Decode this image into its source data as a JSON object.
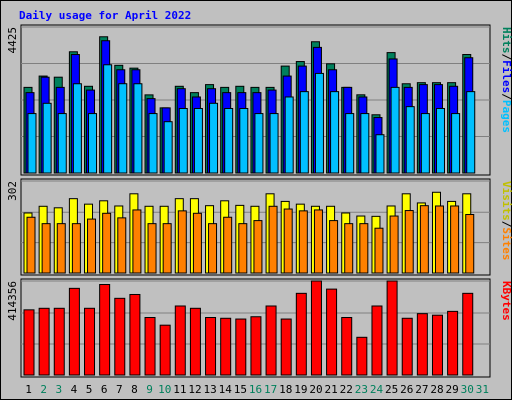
{
  "chart_data": {
    "type": "bar",
    "title": "Daily usage for April 2022",
    "categories": [
      "1",
      "2",
      "3",
      "4",
      "5",
      "6",
      "7",
      "8",
      "9",
      "10",
      "11",
      "12",
      "13",
      "14",
      "15",
      "16",
      "17",
      "18",
      "19",
      "20",
      "21",
      "22",
      "23",
      "24",
      "25",
      "26",
      "27",
      "28",
      "29",
      "30",
      "31"
    ],
    "weekend_days": [
      2,
      3,
      9,
      10,
      16,
      17,
      23,
      24,
      30,
      31
    ],
    "panels": [
      {
        "id": "hits",
        "max_label": "4425",
        "ymax": 4425,
        "legend": [
          {
            "text": "Hits",
            "color": "#00805c"
          },
          {
            "text": "/",
            "color": "#000000"
          },
          {
            "text": "Files",
            "color": "#0000ff"
          },
          {
            "text": "/",
            "color": "#000000"
          },
          {
            "text": "Pages",
            "color": "#00c0ff"
          }
        ],
        "series": [
          {
            "name": "Hits",
            "color": "#00805c",
            "values": [
              2595,
              2938,
              2904,
              3674,
              2628,
              4129,
              3264,
              3178,
              2368,
              1974,
              2628,
              2436,
              2679,
              2595,
              2628,
              2595,
              2595,
              3240,
              3378,
              3978,
              3309,
              2595,
              2370,
              1765,
              3649,
              2705,
              2738,
              2738,
              2738,
              3591,
              0
            ]
          },
          {
            "name": "Files",
            "color": "#0000ff",
            "values": [
              2436,
              2904,
              2595,
              3591,
              2513,
              4009,
              3129,
              3129,
              2254,
              1974,
              2555,
              2304,
              2555,
              2436,
              2436,
              2436,
              2513,
              2938,
              3240,
              3807,
              3129,
              2595,
              2304,
              1681,
              3457,
              2595,
              2679,
              2679,
              2628,
              3494,
              0
            ]
          },
          {
            "name": "Pages",
            "color": "#00c0ff",
            "values": [
              1801,
              2112,
              1801,
              2705,
              1801,
              3280,
              2706,
              2705,
              1801,
              1555,
              1955,
              1955,
              2112,
              1955,
              1955,
              1801,
              1801,
              2304,
              2466,
              3018,
              2466,
              1801,
              1801,
              1160,
              2595,
              2011,
              1801,
              1955,
              1801,
              2466,
              0
            ]
          }
        ]
      },
      {
        "id": "visits",
        "max_label": "302",
        "ymax": 302,
        "legend": [
          {
            "text": "Visits",
            "color": "#c0c000"
          },
          {
            "text": "/",
            "color": "#000000"
          },
          {
            "text": "Sites",
            "color": "#ff8000"
          }
        ],
        "series": [
          {
            "name": "Visits",
            "color": "#ffff00",
            "values": [
              197,
              219,
              214,
              244,
              226,
              237,
              220,
              260,
              219,
              219,
              244,
              244,
              221,
              237,
              222,
              219,
              260,
              235,
              226,
              219,
              219,
              197,
              187,
              186,
              220,
              260,
              230,
              265,
              235,
              260,
              0
            ]
          },
          {
            "name": "Sites",
            "color": "#ff8000",
            "values": [
              183,
              162,
              162,
              162,
              177,
              196,
              181,
              207,
              162,
              162,
              204,
              196,
              162,
              183,
              162,
              172,
              219,
              210,
              204,
              207,
              172,
              162,
              162,
              147,
              187,
              205,
              221,
              220,
              220,
              192,
              0
            ]
          }
        ]
      },
      {
        "id": "kbytes",
        "max_label": "414356",
        "ymax": 414356,
        "legend": [
          {
            "text": "KBytes",
            "color": "#ff0000"
          }
        ],
        "series": [
          {
            "name": "KBytes",
            "color": "#ff0000",
            "values": [
              287270,
              294036,
              294036,
              381985,
              294036,
              398895,
              338000,
              354915,
              253445,
              219626,
              304184,
              294036,
              253445,
              250063,
              246681,
              256827,
              304184,
              246681,
              359989,
              414356,
              378603,
              253445,
              166196,
              304184,
              414356,
              250063,
              270355,
              263591,
              280501,
              359989,
              0
            ]
          }
        ]
      }
    ]
  }
}
